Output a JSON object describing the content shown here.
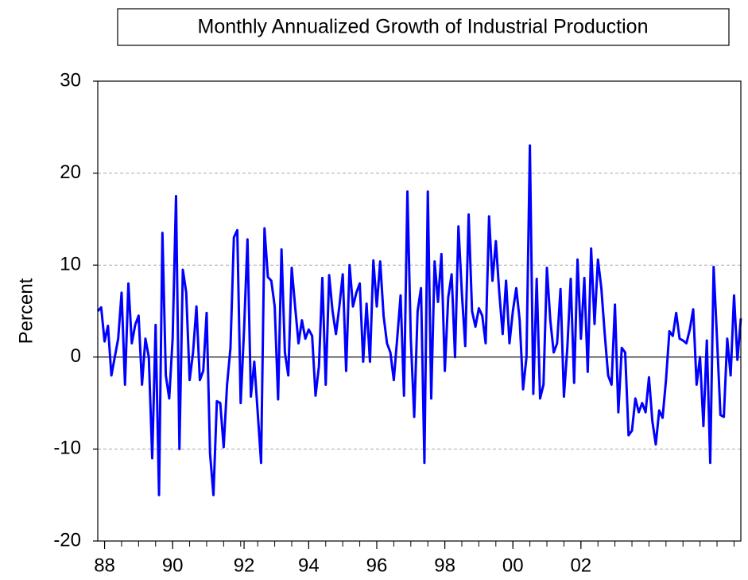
{
  "chart_data": {
    "type": "line",
    "title": "Monthly Annualized Growth of Industrial Production",
    "y_label": "Percent",
    "categories": [
      null,
      null,
      "88",
      null,
      null,
      null,
      null,
      null,
      null,
      null,
      null,
      null,
      null,
      null,
      null,
      null,
      null,
      null,
      null,
      null,
      null,
      null,
      "90",
      null,
      null,
      null,
      null,
      null,
      null,
      null,
      null,
      null,
      null,
      null,
      null,
      null,
      null,
      null,
      null,
      null,
      null,
      null,
      null,
      "92",
      null,
      null,
      null,
      null,
      null,
      null,
      null,
      null,
      null,
      null,
      null,
      null,
      null,
      null,
      null,
      null,
      null,
      null,
      "94",
      null,
      null,
      null,
      null,
      null,
      null,
      null,
      null,
      null,
      null,
      null,
      null,
      null,
      null,
      null,
      null,
      null,
      null,
      null,
      "96",
      null,
      null,
      null,
      null,
      null,
      null,
      null,
      null,
      null,
      null,
      null,
      null,
      null,
      null,
      null,
      null,
      null,
      null,
      null,
      "98",
      null,
      null,
      null,
      null,
      null,
      null,
      null,
      null,
      null,
      null,
      null,
      null,
      null,
      null,
      null,
      null,
      null,
      null,
      null,
      "00",
      null,
      null,
      null,
      null,
      null,
      null,
      null,
      null,
      null,
      null,
      null,
      null,
      null,
      null,
      null,
      null,
      null,
      null,
      null,
      "02",
      null,
      null,
      null,
      null,
      null,
      null,
      null,
      null,
      null,
      null,
      null,
      null,
      null,
      null,
      null,
      null,
      null,
      null,
      null,
      null,
      null,
      null,
      null,
      null,
      null,
      null,
      null,
      null,
      null,
      null,
      null,
      null,
      null,
      null,
      null,
      null,
      null,
      null,
      null,
      null,
      null,
      null,
      null,
      null,
      null,
      null,
      null
    ],
    "series": [
      {
        "color": "#0000ff",
        "values": [
          5,
          5.4,
          1.7,
          3.4,
          -2,
          0,
          2,
          7,
          -3,
          8,
          1.5,
          3.5,
          4.5,
          -3,
          2,
          0,
          -11,
          3.5,
          -15,
          13.5,
          -2,
          -4.5,
          2,
          17.5,
          -10,
          9.5,
          7,
          -2.5,
          0.5,
          5.5,
          -2.5,
          -1.5,
          4.8,
          -10.5,
          -15,
          -4.8,
          -5,
          -9.8,
          -3,
          1,
          13,
          13.8,
          -5,
          3,
          12.8,
          -4.3,
          -0.5,
          -6,
          -11.5,
          14,
          8.7,
          8.3,
          5.5,
          -4.6,
          11.7,
          0.5,
          -2,
          9.7,
          5.5,
          1.5,
          4,
          2,
          3,
          2.3,
          -4.2,
          -1,
          8.6,
          -3,
          8.9,
          5,
          2.5,
          5.5,
          9,
          -1.5,
          10,
          5.5,
          7,
          8,
          -0.5,
          5.8,
          -0.5,
          10.5,
          5.5,
          10.4,
          4.5,
          1.5,
          0.5,
          -2.5,
          2,
          6.7,
          -4.2,
          18,
          2,
          -6.5,
          5,
          7.5,
          -11.5,
          18,
          -4.5,
          10.4,
          6,
          11.2,
          -1.5,
          6.5,
          9,
          0,
          14.2,
          7,
          1.2,
          15.5,
          5,
          3.3,
          5.3,
          4.5,
          1.5,
          15.3,
          8.3,
          12.6,
          7,
          2.5,
          8.3,
          1.5,
          5,
          7.5,
          4,
          -3.5,
          0,
          23,
          -4,
          8.5,
          -4.5,
          -3,
          9.7,
          4,
          0.5,
          1.5,
          7.4,
          -4.3,
          1,
          8.5,
          -2.8,
          10.6,
          2,
          8.6,
          -1.6,
          11.8,
          3.6,
          10.6,
          7.5,
          2.5,
          -2,
          -3,
          5.7,
          -6,
          1,
          0.5,
          -8.5,
          -8,
          -4.5,
          -6,
          -5,
          -6,
          -2.2,
          -7,
          -9.5,
          -5.8,
          -6.6,
          -2.5,
          2.8,
          2.3,
          4.8,
          2,
          1.8,
          1.5,
          3,
          5.2,
          -3,
          0,
          -7.5,
          1.8,
          -11.5,
          9.8,
          2,
          -6.3,
          -6.5,
          2,
          -2,
          6.7,
          -0.3,
          4.2
        ]
      }
    ],
    "ylim": [
      -20,
      30
    ],
    "yticks": [
      -20,
      -10,
      0,
      10,
      20,
      30
    ],
    "grid": true,
    "zero_line": true
  }
}
